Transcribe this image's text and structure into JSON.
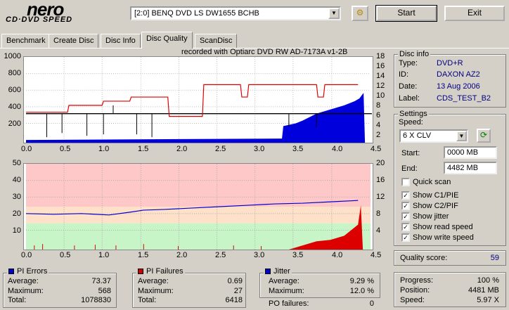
{
  "app": {
    "logo_main": "nero",
    "logo_sub": "CD·DVD SPEED"
  },
  "toolbar": {
    "drive": "[2:0]   BENQ DVD LS DW1655 BCHB",
    "start_label": "Start",
    "exit_label": "Exit"
  },
  "tabs": [
    {
      "label": "Benchmark"
    },
    {
      "label": "Create Disc"
    },
    {
      "label": "Disc Info"
    },
    {
      "label": "Disc Quality",
      "active": true
    },
    {
      "label": "ScanDisc"
    }
  ],
  "chart_top": {
    "title": "recorded with Optiarc DVD RW AD-7173A  v1-2B",
    "y_left_ticks": [
      "1000",
      "800",
      "600",
      "400",
      "200"
    ],
    "y_right_ticks": [
      "18",
      "16",
      "14",
      "12",
      "10",
      "8",
      "6",
      "4",
      "2"
    ],
    "x_ticks": [
      "0.0",
      "0.5",
      "1.0",
      "1.5",
      "2.0",
      "2.5",
      "3.0",
      "3.5",
      "4.0",
      "4.5"
    ]
  },
  "chart_bottom": {
    "y_left_ticks": [
      "50",
      "40",
      "30",
      "20",
      "10"
    ],
    "y_right_ticks": [
      "20",
      "16",
      "12",
      "8",
      "4"
    ],
    "x_ticks": [
      "0.0",
      "0.5",
      "1.0",
      "1.5",
      "2.0",
      "2.5",
      "3.0",
      "3.5",
      "4.0",
      "4.5"
    ]
  },
  "disc_info": {
    "title": "Disc info",
    "rows": [
      {
        "label": "Type:",
        "value": "DVD+R"
      },
      {
        "label": "ID:",
        "value": "DAXON AZ2"
      },
      {
        "label": "Date:",
        "value": "13 Aug 2006"
      },
      {
        "label": "Label:",
        "value": "CDS_TEST_B2"
      }
    ]
  },
  "settings": {
    "title": "Settings",
    "speed_label": "Speed:",
    "speed_value": "6 X CLV",
    "start_label": "Start:",
    "start_value": "0000 MB",
    "end_label": "End:",
    "end_value": "4482 MB",
    "checks": [
      {
        "label": "Quick scan",
        "checked": false
      },
      {
        "label": "Show C1/PIE",
        "checked": true
      },
      {
        "label": "Show C2/PIF",
        "checked": true
      },
      {
        "label": "Show jitter",
        "checked": true
      },
      {
        "label": "Show read speed",
        "checked": true
      },
      {
        "label": "Show write speed",
        "checked": true
      }
    ]
  },
  "quality": {
    "label": "Quality score:",
    "value": "59"
  },
  "pi_errors": {
    "title": "PI Errors",
    "color": "#0000cc",
    "average": "73.37",
    "maximum": "568",
    "total": "1078830"
  },
  "pi_failures": {
    "title": "PI Failures",
    "color": "#cc0000",
    "average": "0.69",
    "maximum": "27",
    "total": "6418"
  },
  "jitter": {
    "title": "Jitter",
    "color": "#0000cc",
    "average": "9.29 %",
    "maximum": "12.0 %",
    "po_label": "PO failures:",
    "po_value": "0"
  },
  "stat_labels": {
    "average": "Average:",
    "maximum": "Maximum:",
    "total": "Total:"
  },
  "progress": {
    "progress_label": "Progress:",
    "progress_value": "100 %",
    "position_label": "Position:",
    "position_value": "4481 MB",
    "speed_label": "Speed:",
    "speed_value": "5.97 X"
  }
}
